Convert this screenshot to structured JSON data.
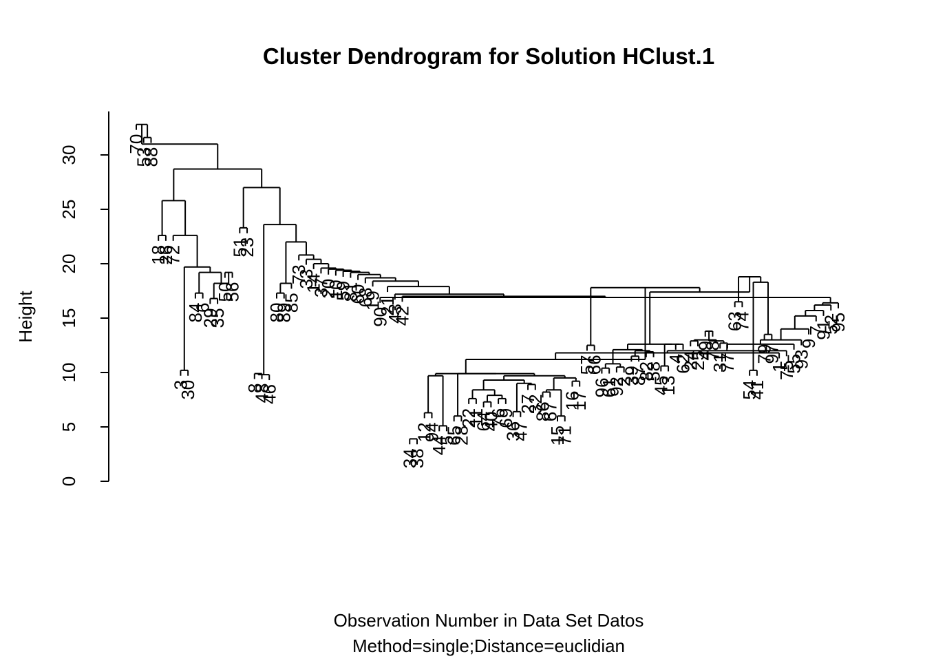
{
  "chart_data": {
    "type": "dendrogram",
    "title": "Cluster Dendrogram for Solution HClust.1",
    "ylabel": "Height",
    "xlabel": "Observation Number in Data Set Datos",
    "sub": "Method=single;Distance=euclidian",
    "ylim": [
      0,
      34
    ],
    "yticks": [
      0,
      5,
      10,
      15,
      20,
      25,
      30
    ],
    "grid": false,
    "leaves": [
      "70",
      "53",
      "88",
      "18",
      "26",
      "72",
      "3",
      "30",
      "84",
      "6",
      "29",
      "35",
      "50",
      "56",
      "51",
      "23",
      "8",
      "48",
      "46",
      "80",
      "89",
      "85",
      "73",
      "33",
      "14",
      "37",
      "20",
      "10",
      "59",
      "81",
      "60",
      "68",
      "19",
      "90",
      "21",
      "43",
      "42",
      "34",
      "38",
      "12",
      "94",
      "44",
      "5",
      "65",
      "28",
      "22",
      "11",
      "64",
      "40",
      "76",
      "69",
      "36",
      "47",
      "27",
      "32",
      "86",
      "67",
      "15",
      "71",
      "16",
      "17",
      "57",
      "66",
      "96",
      "61",
      "92",
      "2",
      "39",
      "87",
      "82",
      "58",
      "45",
      "13",
      "4",
      "62",
      "24",
      "25",
      "49",
      "78",
      "31",
      "77",
      "63",
      "74",
      "54",
      "41",
      "79",
      "97",
      "1",
      "75",
      "55",
      "93",
      "9",
      "7",
      "91",
      "52",
      "95"
    ],
    "merges": [
      {
        "items": [
          "53",
          "88"
        ],
        "height": 31.6
      },
      {
        "items": [
          "70",
          "c1"
        ],
        "height": 32.8
      },
      {
        "items": [
          "18",
          "26"
        ],
        "height": 22.6
      },
      {
        "items": [
          "3",
          "30"
        ],
        "height": 10.2
      },
      {
        "items": [
          "84",
          "6"
        ],
        "height": 17.3
      },
      {
        "items": [
          "29",
          "35"
        ],
        "height": 16.8
      },
      {
        "items": [
          "50",
          "56"
        ],
        "height": 19.2
      },
      {
        "items": [
          "c6",
          "c7"
        ],
        "height": 18.2
      },
      {
        "items": [
          "c5",
          "c8"
        ],
        "height": 19.2
      },
      {
        "items": [
          "c4",
          "c9"
        ],
        "height": 19.7
      },
      {
        "items": [
          "72",
          "c10"
        ],
        "height": 22.6
      },
      {
        "items": [
          "c3",
          "c11"
        ],
        "height": 25.8
      },
      {
        "items": [
          "51",
          "23"
        ],
        "height": 23.3
      },
      {
        "items": [
          "8",
          "48"
        ],
        "height": 9.9
      },
      {
        "items": [
          "c14",
          "46"
        ],
        "height": 9.8
      },
      {
        "items": [
          "80",
          "89"
        ],
        "height": 17.3
      },
      {
        "items": [
          "85",
          "c16"
        ],
        "height": 18.2
      },
      {
        "items": [
          "34",
          "38"
        ],
        "height": 3.9
      },
      {
        "items": [
          "12",
          "94"
        ],
        "height": 6.3
      },
      {
        "items": [
          "44",
          "5"
        ],
        "height": 5.1
      },
      {
        "items": [
          "c19",
          "c20"
        ],
        "height": 9.7
      },
      {
        "items": [
          "65",
          "28"
        ],
        "height": 6.0
      },
      {
        "items": [
          "22",
          "11"
        ],
        "height": 7.6
      },
      {
        "items": [
          "64",
          "40"
        ],
        "height": 7.3
      },
      {
        "items": [
          "76",
          "69"
        ],
        "height": 7.6
      },
      {
        "items": [
          "c24",
          "c25"
        ],
        "height": 7.9
      },
      {
        "items": [
          "c23",
          "c26"
        ],
        "height": 8.4
      },
      {
        "items": [
          "36",
          "47"
        ],
        "height": 6.4
      },
      {
        "items": [
          "27",
          "32"
        ],
        "height": 8.9
      },
      {
        "items": [
          "c28",
          "c29"
        ],
        "height": 9.0
      },
      {
        "items": [
          "c27",
          "c30"
        ],
        "height": 9.3
      },
      {
        "items": [
          "86",
          "67"
        ],
        "height": 8.2
      },
      {
        "items": [
          "15",
          "71"
        ],
        "height": 6.0
      },
      {
        "items": [
          "c32",
          "c33"
        ],
        "height": 8.4
      },
      {
        "items": [
          "16",
          "17"
        ],
        "height": 9.2
      },
      {
        "items": [
          "c34",
          "c35"
        ],
        "height": 9.5
      },
      {
        "items": [
          "c31",
          "c36"
        ],
        "height": 9.7
      },
      {
        "items": [
          "c22",
          "c37"
        ],
        "height": 9.9
      },
      {
        "items": [
          "c21",
          "c38"
        ],
        "height": 9.9
      },
      {
        "items": [
          "57",
          "66"
        ],
        "height": 12.5
      },
      {
        "items": [
          "96",
          "61"
        ],
        "height": 10.4
      },
      {
        "items": [
          "92",
          "2"
        ],
        "height": 10.5
      },
      {
        "items": [
          "c41",
          "c42"
        ],
        "height": 10.8
      },
      {
        "items": [
          "39",
          "87"
        ],
        "height": 11.5
      },
      {
        "items": [
          "82",
          "58"
        ],
        "height": 11.9
      },
      {
        "items": [
          "c44",
          "c45"
        ],
        "height": 12.0
      },
      {
        "items": [
          "c43",
          "c46"
        ],
        "height": 12.1
      },
      {
        "items": [
          "45",
          "13"
        ],
        "height": 10.6
      },
      {
        "items": [
          "4",
          "62"
        ],
        "height": 12.6
      },
      {
        "items": [
          "c48",
          "c49"
        ],
        "height": 12.6
      },
      {
        "items": [
          "c47",
          "c50"
        ],
        "height": 12.6
      },
      {
        "items": [
          "24",
          "25"
        ],
        "height": 12.9
      },
      {
        "items": [
          "49",
          "78"
        ],
        "height": 13.8
      },
      {
        "items": [
          "31",
          "77"
        ],
        "height": 12.7
      },
      {
        "items": [
          "c53",
          "c54"
        ],
        "height": 12.9
      },
      {
        "items": [
          "c52",
          "c55"
        ],
        "height": 13.0
      },
      {
        "items": [
          "63",
          "74"
        ],
        "height": 16.5
      },
      {
        "items": [
          "54",
          "41"
        ],
        "height": 10.2
      },
      {
        "items": [
          "79",
          "97"
        ],
        "height": 13.5
      },
      {
        "items": [
          "c58",
          "c59"
        ],
        "height": 18.3
      },
      {
        "items": [
          "c57",
          "c60"
        ],
        "height": 18.8
      },
      {
        "items": [
          "c51",
          "c61"
        ],
        "height": 17.4
      },
      {
        "items": [
          "c40",
          "c62"
        ],
        "height": 17.8
      },
      {
        "items": [
          "c39",
          "c63"
        ],
        "height": 11.2
      },
      {
        "items": [
          "c64",
          "1"
        ],
        "height": 11.8
      },
      {
        "items": [
          "c65",
          "75"
        ],
        "height": 12.0
      },
      {
        "items": [
          "c66",
          "55"
        ],
        "height": 12.6
      },
      {
        "items": [
          "c67",
          "93"
        ],
        "height": 13.0
      },
      {
        "items": [
          "c68",
          "9"
        ],
        "height": 14.0
      },
      {
        "items": [
          "c69",
          "7"
        ],
        "height": 15.2
      },
      {
        "items": [
          "c70",
          "91"
        ],
        "height": 15.7
      },
      {
        "items": [
          "c71",
          "52"
        ],
        "height": 16.2
      },
      {
        "items": [
          "c72",
          "95"
        ],
        "height": 16.4
      },
      {
        "items": [
          "c73",
          "90"
        ],
        "height": 16.9
      },
      {
        "items": [
          "c74",
          "42"
        ],
        "height": 17.0
      },
      {
        "items": [
          "c75",
          "43"
        ],
        "height": 17.2
      },
      {
        "items": [
          "c76",
          "21"
        ],
        "height": 17.9
      },
      {
        "items": [
          "c77",
          "19"
        ],
        "height": 18.4
      },
      {
        "items": [
          "c78",
          "68"
        ],
        "height": 18.7
      },
      {
        "items": [
          "c79",
          "60"
        ],
        "height": 19.0
      },
      {
        "items": [
          "c80",
          "81"
        ],
        "height": 19.2
      },
      {
        "items": [
          "c81",
          "59"
        ],
        "height": 19.3
      },
      {
        "items": [
          "c82",
          "10"
        ],
        "height": 19.4
      },
      {
        "items": [
          "c83",
          "20"
        ],
        "height": 19.5
      },
      {
        "items": [
          "c84",
          "37"
        ],
        "height": 19.6
      },
      {
        "items": [
          "c85",
          "14"
        ],
        "height": 20.0
      },
      {
        "items": [
          "c86",
          "33"
        ],
        "height": 20.4
      },
      {
        "items": [
          "c87",
          "73"
        ],
        "height": 20.8
      },
      {
        "items": [
          "c88",
          "c17"
        ],
        "height": 22.0
      },
      {
        "items": [
          "c89",
          "c15"
        ],
        "height": 23.6
      },
      {
        "items": [
          "c13",
          "c90"
        ],
        "height": 27.0
      },
      {
        "items": [
          "c12",
          "c91"
        ],
        "height": 28.7
      },
      {
        "items": [
          "c92",
          "c2"
        ],
        "height": 31.0
      }
    ]
  }
}
